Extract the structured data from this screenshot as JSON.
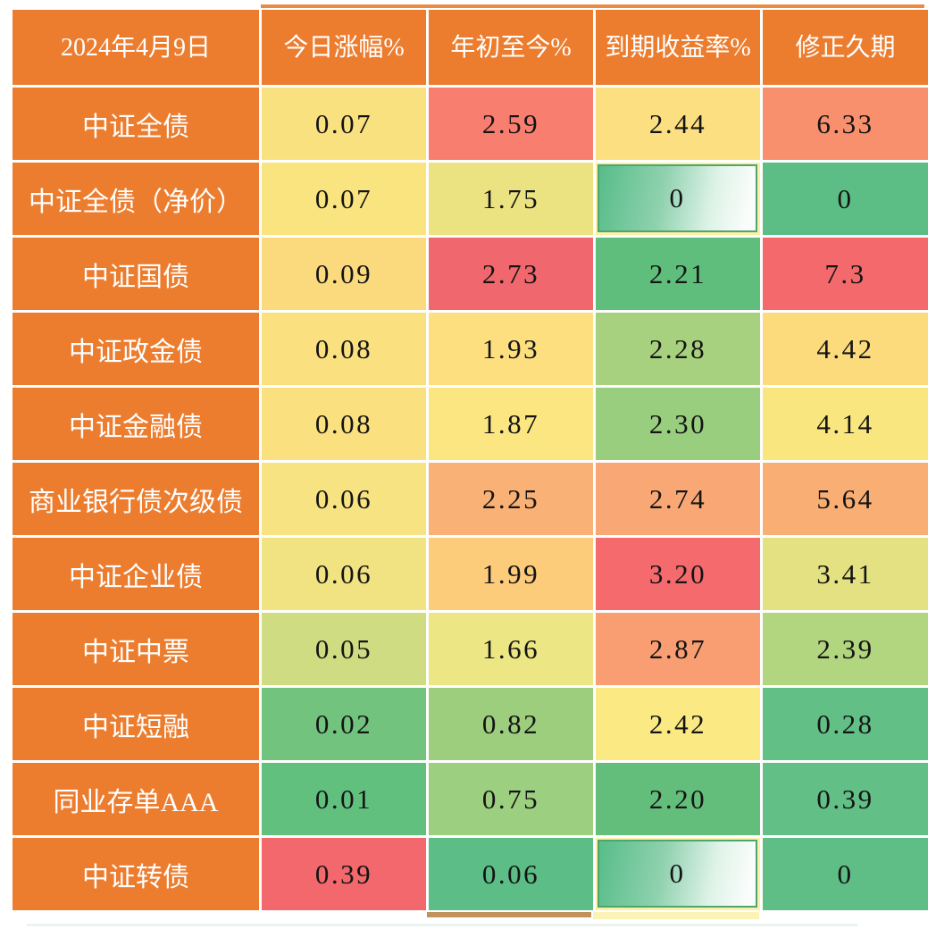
{
  "colors": {
    "header_bg": "#EC7D2F",
    "header_text": "#FFFFFF",
    "value_text": "#141414",
    "grid_line": "#FFFFFF",
    "gradient_bar_border": "#4EA56F",
    "gradient_bar_start": "#57BD89",
    "gradient_bar_end": "#FBFDFC",
    "bar_cell_bg": "#FCF0A4"
  },
  "table": {
    "header": {
      "date": "2024年4月9日",
      "columns": [
        "今日涨幅%",
        "年初至今%",
        "到期收益率%",
        "修正久期"
      ]
    },
    "rows": [
      {
        "label": "中证全债",
        "cells": [
          {
            "text": "0.07",
            "bg": "#FAE180"
          },
          {
            "text": "2.59",
            "bg": "#F87F70"
          },
          {
            "text": "2.44",
            "bg": "#FBDF80"
          },
          {
            "text": "6.33",
            "bg": "#F8906E"
          }
        ]
      },
      {
        "label": "中证全债（净价）",
        "cells": [
          {
            "text": "0.07",
            "bg": "#FAE47F"
          },
          {
            "text": "1.75",
            "bg": "#EBE381"
          },
          {
            "text": "0",
            "bg": "#FCF0A4",
            "bar": true
          },
          {
            "text": "0",
            "bg": "#5CBE85"
          }
        ]
      },
      {
        "label": "中证国债",
        "cells": [
          {
            "text": "0.09",
            "bg": "#FBDA7E"
          },
          {
            "text": "2.73",
            "bg": "#F0686E"
          },
          {
            "text": "2.21",
            "bg": "#60BE7C"
          },
          {
            "text": "7.3",
            "bg": "#F4696B"
          }
        ]
      },
      {
        "label": "中证政金债",
        "cells": [
          {
            "text": "0.08",
            "bg": "#FAE07F"
          },
          {
            "text": "1.93",
            "bg": "#FDDF80"
          },
          {
            "text": "2.28",
            "bg": "#A7D17E"
          },
          {
            "text": "4.42",
            "bg": "#FCDB7C"
          }
        ]
      },
      {
        "label": "中证金融债",
        "cells": [
          {
            "text": "0.08",
            "bg": "#FAE07F"
          },
          {
            "text": "1.87",
            "bg": "#FBE681"
          },
          {
            "text": "2.30",
            "bg": "#99CE7E"
          },
          {
            "text": "4.14",
            "bg": "#FAE67F"
          }
        ]
      },
      {
        "label": "商业银行债次级债",
        "cells": [
          {
            "text": "0.06",
            "bg": "#F7E381"
          },
          {
            "text": "2.25",
            "bg": "#F9B175"
          },
          {
            "text": "2.74",
            "bg": "#F9A875"
          },
          {
            "text": "5.64",
            "bg": "#F9AE74"
          }
        ]
      },
      {
        "label": "中证企业债",
        "cells": [
          {
            "text": "0.06",
            "bg": "#F1E381"
          },
          {
            "text": "1.99",
            "bg": "#FCCC7B"
          },
          {
            "text": "3.20",
            "bg": "#F56A6D"
          },
          {
            "text": "3.41",
            "bg": "#E3E182"
          }
        ]
      },
      {
        "label": "中证中票",
        "cells": [
          {
            "text": "0.05",
            "bg": "#CFDC81"
          },
          {
            "text": "1.66",
            "bg": "#EDE684"
          },
          {
            "text": "2.87",
            "bg": "#F99E73"
          },
          {
            "text": "2.39",
            "bg": "#B2D57F"
          }
        ]
      },
      {
        "label": "中证短融",
        "cells": [
          {
            "text": "0.02",
            "bg": "#71C37E"
          },
          {
            "text": "0.82",
            "bg": "#9CCE7E"
          },
          {
            "text": "2.42",
            "bg": "#FBE983"
          },
          {
            "text": "0.28",
            "bg": "#62C087"
          }
        ]
      },
      {
        "label": "同业存单AAA",
        "cells": [
          {
            "text": "0.01",
            "bg": "#62C07F"
          },
          {
            "text": "0.75",
            "bg": "#9DCF80"
          },
          {
            "text": "2.20",
            "bg": "#63BE7B"
          },
          {
            "text": "0.39",
            "bg": "#62C087"
          }
        ]
      },
      {
        "label": "中证转债",
        "cells": [
          {
            "text": "0.39",
            "bg": "#F2686C"
          },
          {
            "text": "0.06",
            "bg": "#5CBE86"
          },
          {
            "text": "0",
            "bg": "#FCF0A4",
            "bar": true
          },
          {
            "text": "0",
            "bg": "#5EBE85"
          }
        ]
      }
    ]
  },
  "chart_data": {
    "type": "table",
    "title": "2024年4月9日",
    "columns": [
      "今日涨幅%",
      "年初至今%",
      "到期收益率%",
      "修正久期"
    ],
    "row_labels": [
      "中证全债",
      "中证全债（净价）",
      "中证国债",
      "中证政金债",
      "中证金融债",
      "商业银行债次级债",
      "中证企业债",
      "中证中票",
      "中证短融",
      "同业存单AAA",
      "中证转债"
    ],
    "series": [
      {
        "name": "今日涨幅%",
        "values": [
          0.07,
          0.07,
          0.09,
          0.08,
          0.08,
          0.06,
          0.06,
          0.05,
          0.02,
          0.01,
          0.39
        ]
      },
      {
        "name": "年初至今%",
        "values": [
          2.59,
          1.75,
          2.73,
          1.93,
          1.87,
          2.25,
          1.99,
          1.66,
          0.82,
          0.75,
          0.06
        ]
      },
      {
        "name": "到期收益率%",
        "values": [
          2.44,
          0,
          2.21,
          2.28,
          2.3,
          2.74,
          3.2,
          2.87,
          2.42,
          2.2,
          0
        ]
      },
      {
        "name": "修正久期",
        "values": [
          6.33,
          0,
          7.3,
          4.42,
          4.14,
          5.64,
          3.41,
          2.39,
          0.28,
          0.39,
          0
        ]
      }
    ],
    "layout_hints": {
      "conditional_formatting": "red-yellow-green color scale per column; zero cells shown as green gradient bar with border",
      "header_style": "orange background, white text",
      "grid": "white separators between cells"
    }
  }
}
